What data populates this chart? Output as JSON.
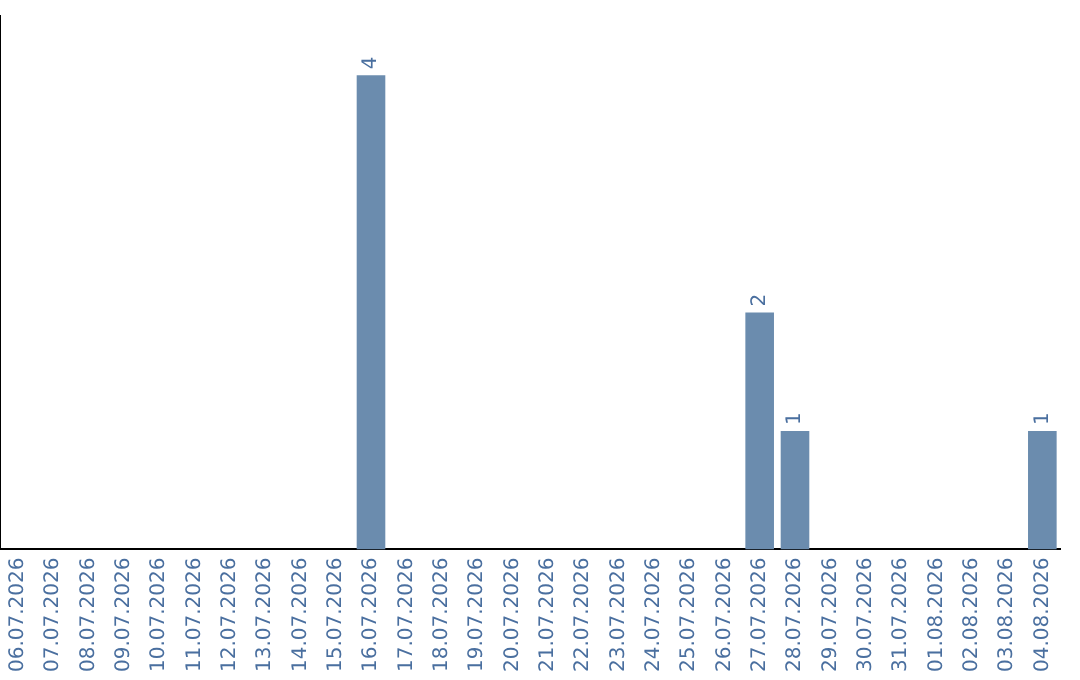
{
  "chart_data": {
    "type": "bar",
    "categories": [
      "06.07.2026",
      "07.07.2026",
      "08.07.2026",
      "09.07.2026",
      "10.07.2026",
      "11.07.2026",
      "12.07.2026",
      "13.07.2026",
      "14.07.2026",
      "15.07.2026",
      "16.07.2026",
      "17.07.2026",
      "18.07.2026",
      "19.07.2026",
      "20.07.2026",
      "21.07.2026",
      "22.07.2026",
      "23.07.2026",
      "24.07.2026",
      "25.07.2026",
      "26.07.2026",
      "27.07.2026",
      "28.07.2026",
      "29.07.2026",
      "30.07.2026",
      "31.07.2026",
      "01.08.2026",
      "02.08.2026",
      "03.08.2026",
      "04.08.2026"
    ],
    "values": [
      0,
      0,
      0,
      0,
      0,
      0,
      0,
      0,
      0,
      0,
      4,
      0,
      0,
      0,
      0,
      0,
      0,
      0,
      0,
      0,
      0,
      2,
      1,
      0,
      0,
      0,
      0,
      0,
      0,
      1
    ],
    "value_labels": [
      null,
      null,
      null,
      null,
      null,
      null,
      null,
      null,
      null,
      null,
      "4",
      null,
      null,
      null,
      null,
      null,
      null,
      null,
      null,
      null,
      null,
      "2",
      "1",
      null,
      null,
      null,
      null,
      null,
      null,
      "1"
    ],
    "color": "#6b8cae",
    "grid": false,
    "legend": false
  }
}
